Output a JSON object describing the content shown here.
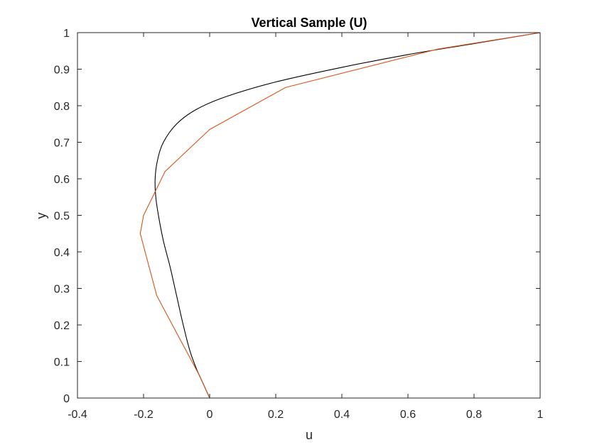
{
  "chart_data": {
    "type": "line",
    "title": "Vertical Sample (U)",
    "xlabel": "u",
    "ylabel": "y",
    "xlim": [
      -0.4,
      1
    ],
    "ylim": [
      0,
      1
    ],
    "xticks": [
      "-0.4",
      "-0.2",
      "0",
      "0.2",
      "0.4",
      "0.6",
      "0.8",
      "1"
    ],
    "yticks": [
      "0",
      "0.1",
      "0.2",
      "0.3",
      "0.4",
      "0.5",
      "0.6",
      "0.7",
      "0.8",
      "0.9",
      "1"
    ],
    "grid": false,
    "legend": "none",
    "series": [
      {
        "color": "#000000",
        "points": [
          [
            0,
            0
          ],
          [
            -0.02,
            0.04
          ],
          [
            -0.04,
            0.08
          ],
          [
            -0.06,
            0.13
          ],
          [
            -0.08,
            0.2
          ],
          [
            -0.1,
            0.28
          ],
          [
            -0.12,
            0.36
          ],
          [
            -0.14,
            0.43
          ],
          [
            -0.155,
            0.5
          ],
          [
            -0.163,
            0.55
          ],
          [
            -0.165,
            0.6
          ],
          [
            -0.158,
            0.65
          ],
          [
            -0.14,
            0.7
          ],
          [
            -0.1,
            0.75
          ],
          [
            -0.04,
            0.79
          ],
          [
            0.05,
            0.825
          ],
          [
            0.2,
            0.865
          ],
          [
            0.4,
            0.905
          ],
          [
            0.6,
            0.94
          ],
          [
            0.8,
            0.97
          ],
          [
            1.0,
            1.0
          ]
        ]
      },
      {
        "color": "#D95319",
        "points": [
          [
            0,
            0
          ],
          [
            -0.03,
            0.06
          ],
          [
            -0.16,
            0.28
          ],
          [
            -0.21,
            0.45
          ],
          [
            -0.2,
            0.5
          ],
          [
            -0.135,
            0.62
          ],
          [
            0.0,
            0.735
          ],
          [
            0.23,
            0.85
          ],
          [
            0.69,
            0.955
          ],
          [
            1.0,
            1.0
          ]
        ]
      }
    ]
  }
}
